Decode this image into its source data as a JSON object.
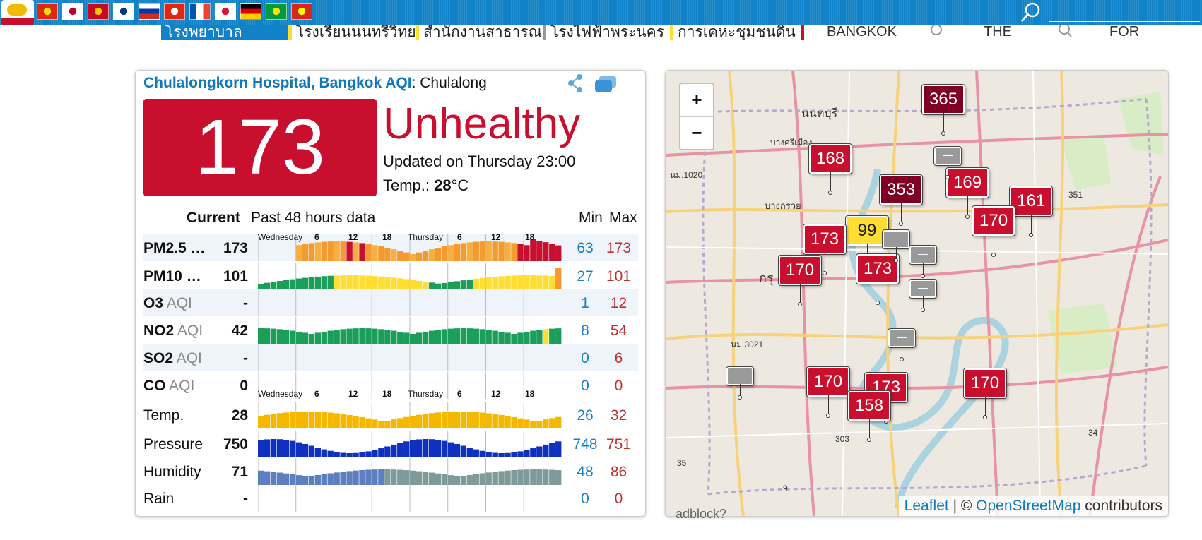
{
  "topbar": {
    "flags": [
      {
        "name": "china",
        "colors": [
          "#de2910",
          "#ffde00"
        ]
      },
      {
        "name": "japan",
        "colors": [
          "#ffffff",
          "#bc002d"
        ]
      },
      {
        "name": "spain",
        "colors": [
          "#c60b1e",
          "#ffc400"
        ]
      },
      {
        "name": "korea",
        "colors": [
          "#ffffff",
          "#003478"
        ]
      },
      {
        "name": "russia",
        "colors": [
          "#ffffff",
          "#0039a6",
          "#d52b1e"
        ]
      },
      {
        "name": "hong-kong",
        "colors": [
          "#de2910",
          "#ffffff"
        ]
      },
      {
        "name": "france",
        "colors": [
          "#0055a4",
          "#ffffff",
          "#ef4135"
        ]
      },
      {
        "name": "poland",
        "colors": [
          "#ffffff",
          "#dc143c"
        ]
      },
      {
        "name": "germany",
        "colors": [
          "#000000",
          "#dd0000",
          "#ffce00"
        ]
      },
      {
        "name": "brazil",
        "colors": [
          "#009c3b",
          "#ffdf00"
        ]
      },
      {
        "name": "vietnam",
        "colors": [
          "#da251d",
          "#ffff00"
        ]
      }
    ],
    "search_placeholder": ""
  },
  "ticker": {
    "items": [
      {
        "label": "โรงพยาบาล",
        "bg": "#1182c7",
        "color": "#ffffff"
      },
      {
        "label": "โรงเรียนนนทรีวิทย",
        "bg": "#ffffff",
        "color": "#222222"
      },
      {
        "label": "สำนักงานสาธารณ",
        "bg": "#ffffff",
        "color": "#222222"
      },
      {
        "label": "โรงไฟฟ้าพระนคร",
        "bg": "#ffffff",
        "color": "#222222"
      },
      {
        "label": "การเคหะชุมชนดิน",
        "bg": "#ffffff",
        "color": "#222222"
      }
    ],
    "words": [
      "BANGKOK",
      "THE",
      "FOR"
    ]
  },
  "station": {
    "title": "Chulalongkorn Hospital, Bangkok AQI",
    "title_suffix": ": Chulalong",
    "aqi": "173",
    "level": "Unhealthy",
    "updated": "Updated on Thursday 23:00",
    "temp_label": "Temp.: ",
    "temp_value": "28",
    "temp_unit": "°C",
    "colors": {
      "unhealthy": "#c8102e",
      "very_unhealthy": "#7e0023",
      "moderate": "#ffde33",
      "grey": "#999999"
    }
  },
  "table": {
    "current_label": "Current",
    "past_label": "Past 48 hours data",
    "min_label": "Min",
    "max_label": "Max",
    "day_labels": [
      "Wednesday",
      "6",
      "12",
      "18",
      "Thursday",
      "6",
      "12",
      "18"
    ],
    "rows": [
      {
        "name": "PM2.5 …",
        "sub": "",
        "current": "173",
        "min": "63",
        "max": "173"
      },
      {
        "name": "PM10 …",
        "sub": "",
        "current": "101",
        "min": "27",
        "max": "101"
      },
      {
        "name": "O3",
        "sub": "AQI",
        "current": "-",
        "min": "1",
        "max": "12"
      },
      {
        "name": "NO2",
        "sub": "AQI",
        "current": "42",
        "min": "8",
        "max": "54"
      },
      {
        "name": "SO2",
        "sub": "AQI",
        "current": "-",
        "min": "0",
        "max": "6"
      },
      {
        "name": "CO",
        "sub": "AQI",
        "current": "0",
        "min": "0",
        "max": "0"
      },
      {
        "name": "Temp.",
        "sub": "",
        "current": "28",
        "min": "26",
        "max": "32"
      },
      {
        "name": "Pressure",
        "sub": "",
        "current": "750",
        "min": "748",
        "max": "751"
      },
      {
        "name": "Humidity",
        "sub": "",
        "current": "71",
        "min": "48",
        "max": "86"
      },
      {
        "name": "Rain",
        "sub": "",
        "current": "-",
        "min": "0",
        "max": "0"
      }
    ]
  },
  "map": {
    "zoom_in": "+",
    "zoom_out": "−",
    "attribution_leaflet": "Leaflet",
    "attribution_sep": " | © ",
    "attribution_osm": "OpenStreetMap",
    "attribution_tail": " contributors",
    "place_labels": [
      "นนทบุรี",
      "บางศรีเมือง",
      "บางกรวย",
      "กรุ",
      "นม.1020",
      "นม.3021",
      "351",
      "303",
      "34",
      "35",
      "9"
    ],
    "markers": [
      {
        "value": "365",
        "color": "#7e0023"
      },
      {
        "value": "168",
        "color": "#c8102e"
      },
      {
        "value": "353",
        "color": "#7e0023"
      },
      {
        "value": "169",
        "color": "#c8102e"
      },
      {
        "value": "161",
        "color": "#c8102e"
      },
      {
        "value": "170",
        "color": "#c8102e"
      },
      {
        "value": "99",
        "color": "#ffde33"
      },
      {
        "value": "173",
        "color": "#c8102e"
      },
      {
        "value": "170",
        "color": "#c8102e"
      },
      {
        "value": "173",
        "color": "#c8102e"
      },
      {
        "value": "170",
        "color": "#c8102e"
      },
      {
        "value": "173",
        "color": "#c8102e"
      },
      {
        "value": "158",
        "color": "#c8102e"
      },
      {
        "value": "170",
        "color": "#c8102e"
      },
      {
        "value": "—",
        "color": "#999999"
      },
      {
        "value": "—",
        "color": "#999999"
      },
      {
        "value": "—",
        "color": "#999999"
      },
      {
        "value": "—",
        "color": "#999999"
      },
      {
        "value": "—",
        "color": "#999999"
      },
      {
        "value": "—",
        "color": "#999999"
      }
    ]
  },
  "footer": {
    "adblock": "adblock?"
  }
}
